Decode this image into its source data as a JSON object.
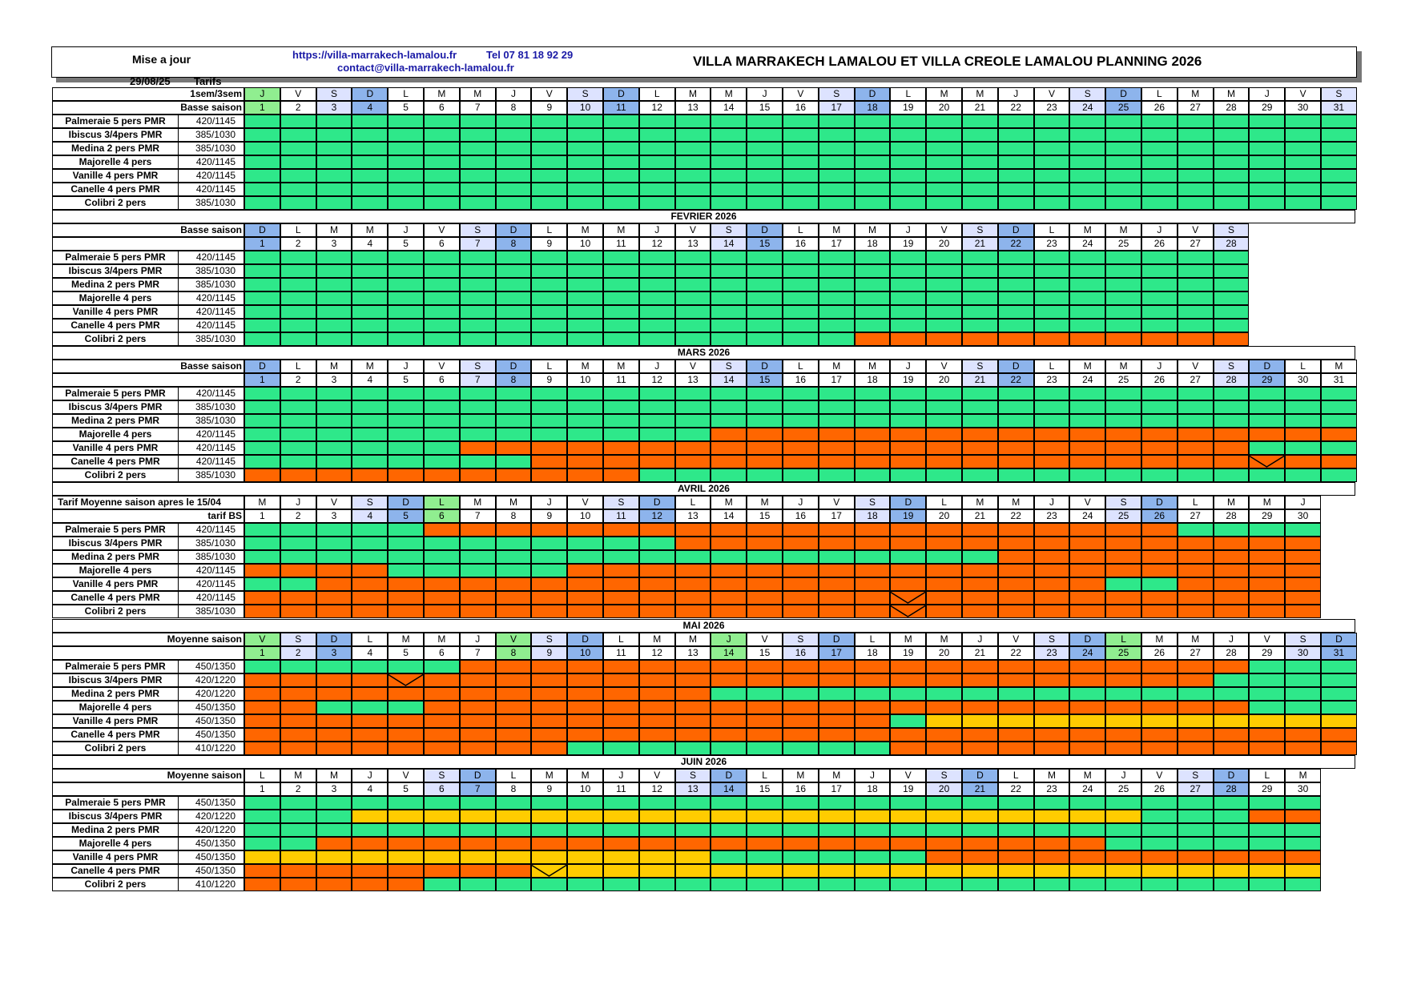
{
  "header": {
    "update_label": "Mise a jour",
    "update_date": "29/08/25",
    "tarifs_label": "Tarifs",
    "website": "https://villa-marrakech-lamalou.fr",
    "phone": "Tel 07 81 18 92 29",
    "email": "contact@villa-marrakech-lamalou.fr",
    "title": "VILLA MARRAKECH LAMALOU ET VILLA CREOLE LAMALOU PLANNING 2026"
  },
  "legend_colors": {
    "available": "#2ee88a",
    "booked": "#ff6600",
    "option": "#ffcc00",
    "weekday_header": "#ffffff",
    "saturday_header": "#dde3ff",
    "sunday_header": "#8db4ec",
    "holiday_header": "#90ee90"
  },
  "months": [
    {
      "name": "",
      "label_row1": "1sem/3sem",
      "label_row2": "Basse saison",
      "days_count": 31,
      "day_letters": [
        "J",
        "V",
        "S",
        "D",
        "L",
        "M",
        "M",
        "J",
        "V",
        "S",
        "D",
        "L",
        "M",
        "M",
        "J",
        "V",
        "S",
        "D",
        "L",
        "M",
        "M",
        "J",
        "V",
        "S",
        "D",
        "L",
        "M",
        "M",
        "J",
        "V",
        "S"
      ],
      "holidays": [
        1
      ],
      "rooms": [
        {
          "name": "Palmeraie 5 pers PMR",
          "price": "420/1145",
          "cells": "AAAAAAAAAAAAAAAAAAAAAAAAAAAAAAA"
        },
        {
          "name": "Ibiscus 3/4pers PMR",
          "price": "385/1030",
          "cells": "AAAAAAAAAAAAAAAAAAAAAAAAAAAAAAA"
        },
        {
          "name": "Medina 2 pers PMR",
          "price": "385/1030",
          "cells": "AAAAAAAAAAAAAAAAAAAAAAAAAAAAAAA"
        },
        {
          "name": "Majorelle 4 pers",
          "price": "420/1145",
          "cells": "AAAAAAAAAAAAAAAAAAAAAAAAAAAAAAA"
        },
        {
          "name": "Vanille 4 pers PMR",
          "price": "420/1145",
          "cells": "AAAAAAAAAAAAAAAAAAAAAAAAAAAAAAA"
        },
        {
          "name": "Canelle 4 pers PMR",
          "price": "420/1145",
          "cells": "AAAAAAAAAAAAAAAAAAAAAAAAAAAAAAA"
        },
        {
          "name": "Colibri 2 pers",
          "price": "385/1030",
          "cells": "AAAAAAAAAAAAAAAAAAAAAAAAAAAAAAA"
        }
      ],
      "marks": []
    },
    {
      "name": "FEVRIER 2026",
      "label_row1": "Basse saison",
      "label_row2": "",
      "days_count": 28,
      "day_letters": [
        "D",
        "L",
        "M",
        "M",
        "J",
        "V",
        "S",
        "D",
        "L",
        "M",
        "M",
        "J",
        "V",
        "S",
        "D",
        "L",
        "M",
        "M",
        "J",
        "V",
        "S",
        "D",
        "L",
        "M",
        "M",
        "J",
        "V",
        "S"
      ],
      "holidays": [],
      "rooms": [
        {
          "name": "Palmeraie 5 pers PMR",
          "price": "420/1145",
          "cells": "AAAAAAAAAAAAAAAAAAAAAAAAAAAA"
        },
        {
          "name": "Ibiscus 3/4pers PMR",
          "price": "385/1030",
          "cells": "AAAAAAAAAAAAAAAAAAAAAAAAAAAA"
        },
        {
          "name": "Medina 2 pers PMR",
          "price": "385/1030",
          "cells": "AAAAAAAAAAAAAAAAAAAAAAAAAAAA"
        },
        {
          "name": "Majorelle 4 pers",
          "price": "420/1145",
          "cells": "AAAAAAAAAAAAAAAAAAAAAAAAAAAA"
        },
        {
          "name": "Vanille 4 pers PMR",
          "price": "420/1145",
          "cells": "AAAAAAAAAAAAAAAAAAAAAAAAAAAA"
        },
        {
          "name": "Canelle 4 pers PMR",
          "price": "420/1145",
          "cells": "AAAAAAAAAAAAAAAAAAAAAAAAAAAA"
        },
        {
          "name": "Colibri 2 pers",
          "price": "385/1030",
          "cells": "AAAAAAAAAAAAAAAAABBBBBBBBBBB"
        }
      ],
      "marks": []
    },
    {
      "name": "MARS 2026",
      "label_row1": "Basse saison",
      "label_row2": "",
      "days_count": 31,
      "day_letters": [
        "D",
        "L",
        "M",
        "M",
        "J",
        "V",
        "S",
        "D",
        "L",
        "M",
        "M",
        "J",
        "V",
        "S",
        "D",
        "L",
        "M",
        "M",
        "J",
        "V",
        "S",
        "D",
        "L",
        "M",
        "M",
        "J",
        "V",
        "S",
        "D",
        "L",
        "M"
      ],
      "holidays": [],
      "rooms": [
        {
          "name": "Palmeraie 5 pers PMR",
          "price": "420/1145",
          "cells": "AAAAAAAAAAAAAAAAAAAAAAAAAAAAAAA"
        },
        {
          "name": "Ibiscus 3/4pers PMR",
          "price": "385/1030",
          "cells": "AAAAAAAAAAAAAAAAAAAAAAAAAAAAAAA"
        },
        {
          "name": "Medina 2 pers PMR",
          "price": "385/1030",
          "cells": "AAAAAAAAAAAAAAAAAAAAAAAAAAAAAAA"
        },
        {
          "name": "Majorelle 4 pers",
          "price": "420/1145",
          "cells": "AAAAAAAAAAAAABBBBBBBBBBBBBBBBBB"
        },
        {
          "name": "Vanille 4 pers PMR",
          "price": "420/1145",
          "cells": "AAAAAABBBBBBBBBBBBBBBBBBBBBBAAA"
        },
        {
          "name": "Canelle 4 pers PMR",
          "price": "420/1145",
          "cells": "AAAAAAAABBBBBBBBBBBBBBBBBBBBBBB"
        },
        {
          "name": "Colibri 2 pers",
          "price": "385/1030",
          "cells": "BBBBBBBBBBBAAAAAAAAAAAAAAAAAAAA"
        }
      ],
      "marks": [
        {
          "row": 5,
          "day": 29
        }
      ]
    },
    {
      "name": "AVRIL 2026",
      "label_row1": "Tarif Moyenne saison apres le 15/04",
      "label_row2": "tarif BS",
      "days_count": 30,
      "day_letters": [
        "M",
        "J",
        "V",
        "S",
        "D",
        "L",
        "M",
        "M",
        "J",
        "V",
        "S",
        "D",
        "L",
        "M",
        "M",
        "J",
        "V",
        "S",
        "D",
        "L",
        "M",
        "M",
        "J",
        "V",
        "S",
        "D",
        "L",
        "M",
        "M",
        "J"
      ],
      "holidays": [
        6
      ],
      "rooms": [
        {
          "name": "Palmeraie 5 pers PMR",
          "price": "420/1145",
          "cells": "AAAAABBBBBBBBBBBBBBBBBBBBBAAAA"
        },
        {
          "name": "Ibiscus 3/4pers PMR",
          "price": "385/1030",
          "cells": "AAAAAAAAAAAABBBBBBBBBBBBBBBBBB"
        },
        {
          "name": "Medina 2 pers PMR",
          "price": "385/1030",
          "cells": "AAAAAAAAAAAAAAAAAAAAABBBBBBBBB"
        },
        {
          "name": "Majorelle 4 pers",
          "price": "420/1145",
          "cells": "BBBBAAAAABBBBBBBBBBBBBBBBBBBBB"
        },
        {
          "name": "Vanille 4 pers PMR",
          "price": "420/1145",
          "cells": "AABBBBBBBBBBBBBBBBBBBBBBAABBBB"
        },
        {
          "name": "Canelle 4 pers PMR",
          "price": "420/1145",
          "cells": "BBBBBBBBBBBBBBBBBBBBBBBBBBBBBB"
        },
        {
          "name": "Colibri 2 pers",
          "price": "385/1030",
          "cells": "BBBBBBBBBBBBBBBBBBBBBBBBBBBBBB"
        }
      ],
      "marks": [
        {
          "row": 5,
          "day": 19
        },
        {
          "row": 6,
          "day": 19
        }
      ]
    },
    {
      "name": "MAI 2026",
      "label_row1": "Moyenne saison",
      "label_row2": "",
      "days_count": 31,
      "day_letters": [
        "V",
        "S",
        "D",
        "L",
        "M",
        "M",
        "J",
        "V",
        "S",
        "D",
        "L",
        "M",
        "M",
        "J",
        "V",
        "S",
        "D",
        "L",
        "M",
        "M",
        "J",
        "V",
        "S",
        "D",
        "L",
        "M",
        "M",
        "J",
        "V",
        "S",
        "D"
      ],
      "holidays": [
        1,
        8,
        14,
        25
      ],
      "rooms": [
        {
          "name": "Palmeraie 5 pers PMR",
          "price": "450/1350",
          "cells": "AAAAAABBBBBBBBBBBBBBBBBBBBBBAAA"
        },
        {
          "name": "Ibiscus 3/4pers PMR",
          "price": "420/1220",
          "cells": "BBBBBBBBBBBBBBBBBBBBBBBBBBBAAAA"
        },
        {
          "name": "Medina 2 pers PMR",
          "price": "420/1220",
          "cells": "BBBBBBBBBBBBBAAAAAAAAAAAAAAAAAA"
        },
        {
          "name": "Majorelle 4 pers",
          "price": "450/1350",
          "cells": "BBAAABBBBBBBBBBBBBBBBBBBBBBBAAA"
        },
        {
          "name": "Vanille 4 pers PMR",
          "price": "450/1350",
          "cells": "BBBBBBBBBBBBBBBBBBAOOOOOOOOOOOO"
        },
        {
          "name": "Canelle 4 pers PMR",
          "price": "450/1350",
          "cells": "BBBBBBBBBBBBBBBBBBBBBBBBBBBBBBB"
        },
        {
          "name": "Colibri 2 pers",
          "price": "410/1220",
          "cells": "BBBBBBBBBAAAAAAAAABBBBBBBBBBBBB"
        }
      ],
      "marks": [
        {
          "row": 1,
          "day": 5
        }
      ]
    },
    {
      "name": "JUIN 2026",
      "label_row1": "Moyenne saison",
      "label_row2": "",
      "days_count": 30,
      "day_letters": [
        "L",
        "M",
        "M",
        "J",
        "V",
        "S",
        "D",
        "L",
        "M",
        "M",
        "J",
        "V",
        "S",
        "D",
        "L",
        "M",
        "M",
        "J",
        "V",
        "S",
        "D",
        "L",
        "M",
        "M",
        "J",
        "V",
        "S",
        "D",
        "L",
        "M"
      ],
      "holidays": [],
      "rooms": [
        {
          "name": "Palmeraie 5 pers PMR",
          "price": "450/1350",
          "cells": "AAAAAAAAAAAAAAAAAAAAAAAAAAAAAA"
        },
        {
          "name": "Ibiscus 3/4pers PMR",
          "price": "420/1220",
          "cells": "AAAOOOOOOOOOOOOOOOOOOOOOOAAABB"
        },
        {
          "name": "Medina 2 pers PMR",
          "price": "420/1220",
          "cells": "AAAAAAAAAAAAAAAAAAAAAAAAAAAAAA"
        },
        {
          "name": "Majorelle 4 pers",
          "price": "450/1350",
          "cells": "AABBBBBBBBBBBBBBBBBBBBBBAAAAAA"
        },
        {
          "name": "Vanille 4 pers PMR",
          "price": "450/1350",
          "cells": "OOOOOOOOOOOOOAAAAAABBBBBBBBBBB"
        },
        {
          "name": "Canelle 4 pers PMR",
          "price": "450/1350",
          "cells": "BBBBBBBBOOOOOOOOOOOOOOOOOOOOOO"
        },
        {
          "name": "Colibri 2 pers",
          "price": "410/1220",
          "cells": "BBBBBAAAAAAAAAAAAAAAAAAAAAAAAA"
        }
      ],
      "marks": [
        {
          "row": 5,
          "day": 9
        }
      ]
    }
  ]
}
